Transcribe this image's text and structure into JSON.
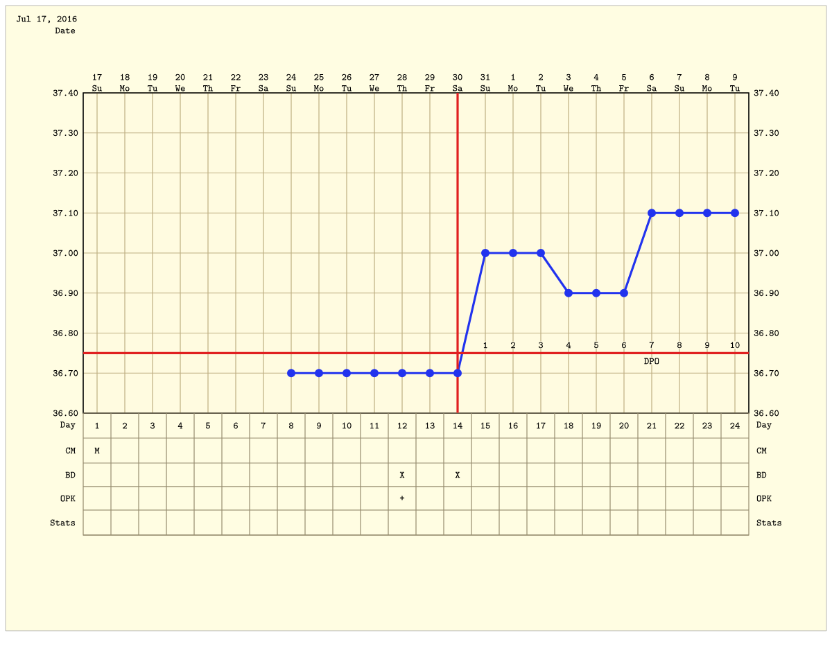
{
  "chart_data": {
    "type": "line",
    "title": "Jul 17, 2016",
    "xlabel": "Date",
    "x2label": "Day",
    "categories": [
      "17 Su",
      "18 Mo",
      "19 Tu",
      "20 We",
      "21 Th",
      "22 Fr",
      "23 Sa",
      "24 Su",
      "25 Mo",
      "26 Tu",
      "27 We",
      "28 Th",
      "29 Fr",
      "30 Sa",
      "31 Su",
      "1 Mo",
      "2 Tu",
      "3 We",
      "4 Th",
      "5 Fr",
      "6 Sa",
      "7 Su",
      "8 Mo",
      "9 Tu"
    ],
    "series": [
      {
        "color": "#2233ee",
        "values": [
          null,
          null,
          null,
          null,
          null,
          null,
          null,
          36.7,
          36.7,
          36.7,
          36.7,
          36.7,
          36.7,
          36.7,
          37.0,
          37.0,
          37.0,
          36.9,
          36.9,
          36.9,
          37.1,
          37.1,
          37.1,
          37.1
        ]
      }
    ],
    "ylim": [
      36.6,
      37.4
    ],
    "yticks": [
      {
        "value": 36.6,
        "label": "36.60"
      },
      {
        "value": 36.7,
        "label": "36.70"
      },
      {
        "value": 36.8,
        "label": "36.80"
      },
      {
        "value": 36.9,
        "label": "36.90"
      },
      {
        "value": 37.0,
        "label": "37.00"
      },
      {
        "value": 37.1,
        "label": "37.10"
      },
      {
        "value": 37.2,
        "label": "37.20"
      },
      {
        "value": 37.3,
        "label": "37.30"
      },
      {
        "value": 37.4,
        "label": "37.40"
      }
    ],
    "y2lim": [
      36.6,
      37.4
    ],
    "y2ticks": [
      {
        "value": 36.6,
        "label": "36.60"
      },
      {
        "value": 36.7,
        "label": "36.70"
      },
      {
        "value": 36.8,
        "label": "36.80"
      },
      {
        "value": 36.9,
        "label": "36.90"
      },
      {
        "value": 37.0,
        "label": "37.00"
      },
      {
        "value": 37.1,
        "label": "37.10"
      },
      {
        "value": 37.2,
        "label": "37.20"
      },
      {
        "value": 37.3,
        "label": "37.30"
      },
      {
        "value": 37.4,
        "label": "37.40"
      }
    ],
    "x2lim": [
      0.5,
      24.5
    ],
    "x2ticks": [
      1,
      2,
      3,
      4,
      5,
      6,
      7,
      8,
      9,
      10,
      11,
      12,
      13,
      14,
      15,
      16,
      17,
      18,
      19,
      20,
      21,
      22,
      23,
      24
    ],
    "ref_lines": [
      {
        "axis": "y",
        "value": 36.75,
        "color": "#e02020"
      },
      {
        "axis": "x",
        "value": "30 Sa",
        "color": "#e02020"
      }
    ],
    "annotations": [
      {
        "text": "1",
        "x": "31 Su",
        "y": 36.77
      },
      {
        "text": "2",
        "x": "1 Mo",
        "y": 36.77
      },
      {
        "text": "3",
        "x": "2 Tu",
        "y": 36.77
      },
      {
        "text": "4",
        "x": "3 We",
        "y": 36.77
      },
      {
        "text": "5",
        "x": "4 Th",
        "y": 36.77
      },
      {
        "text": "6",
        "x": "5 Fr",
        "y": 36.77
      },
      {
        "text": "7",
        "x": "6 Sa",
        "y": 36.77
      },
      {
        "text": "8",
        "x": "7 Su",
        "y": 36.77
      },
      {
        "text": "9",
        "x": "8 Mo",
        "y": 36.77
      },
      {
        "text": "10",
        "x": "9 Tu",
        "y": 36.77
      },
      {
        "text": "DPO",
        "x": "6 Sa",
        "y": 36.73
      },
      "CM",
      "BD",
      "OPK",
      "Stats",
      "M",
      "X",
      "X",
      "+"
    ],
    "grid": true,
    "marker": "circle",
    "line_style": "solid"
  }
}
